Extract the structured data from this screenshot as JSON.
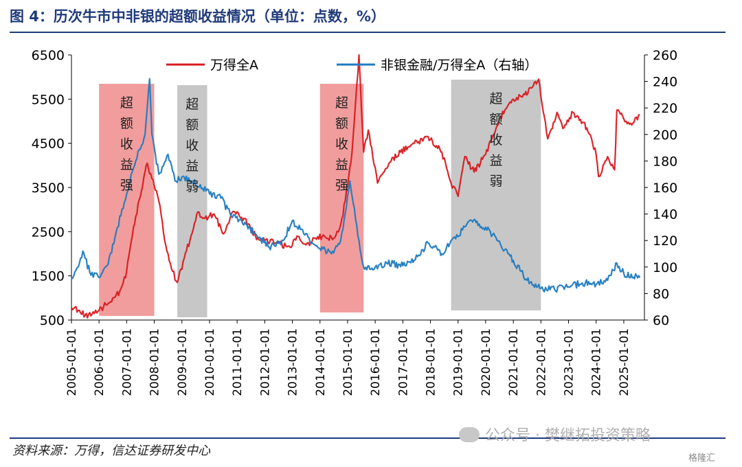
{
  "header": {
    "title": "图 4：历次牛市中非银的超额收益情况（单位：点数，%）"
  },
  "footer": {
    "source": "资料来源：万得，信达证券研发中心",
    "watermark": "公众号 · 樊继拓投资策略",
    "brand": "格隆汇"
  },
  "chart_data": {
    "type": "line",
    "x_tick_labels": [
      "2005-01-01",
      "2006-01-01",
      "2007-01-01",
      "2008-01-01",
      "2009-01-01",
      "2010-01-01",
      "2011-01-01",
      "2012-01-01",
      "2013-01-01",
      "2014-01-01",
      "2015-01-01",
      "2016-01-01",
      "2017-01-01",
      "2018-01-01",
      "2019-01-01",
      "2020-01-01",
      "2021-01-01",
      "2022-01-01",
      "2023-01-01",
      "2024-01-01",
      "2025-01-01"
    ],
    "y_left": {
      "ticks": [
        500,
        1500,
        2500,
        3500,
        4500,
        5500,
        6500
      ],
      "range": [
        500,
        6500
      ]
    },
    "y_right": {
      "ticks": [
        60,
        80,
        100,
        120,
        140,
        160,
        180,
        200,
        220,
        240,
        260
      ],
      "range": [
        60,
        260
      ]
    },
    "colors": {
      "wind_a": "#d9191f",
      "ratio": "#1f7bc0",
      "strong_band": "#ef8c8c",
      "weak_band": "#c4c4c4"
    },
    "series": [
      {
        "name": "万得全A",
        "axis": "left",
        "points": [
          [
            "2005-01-01",
            780
          ],
          [
            "2005-04-01",
            720
          ],
          [
            "2005-07-01",
            610
          ],
          [
            "2005-10-01",
            630
          ],
          [
            "2006-01-01",
            720
          ],
          [
            "2006-04-01",
            850
          ],
          [
            "2006-07-01",
            1000
          ],
          [
            "2006-10-01",
            1150
          ],
          [
            "2007-01-01",
            1600
          ],
          [
            "2007-04-01",
            2600
          ],
          [
            "2007-07-01",
            3300
          ],
          [
            "2007-10-01",
            4050
          ],
          [
            "2007-12-01",
            3700
          ],
          [
            "2008-03-01",
            3200
          ],
          [
            "2008-06-01",
            2200
          ],
          [
            "2008-09-01",
            1600
          ],
          [
            "2008-11-01",
            1350
          ],
          [
            "2009-02-01",
            1900
          ],
          [
            "2009-05-01",
            2400
          ],
          [
            "2009-08-01",
            2950
          ],
          [
            "2009-11-01",
            2800
          ],
          [
            "2010-03-01",
            2900
          ],
          [
            "2010-07-01",
            2450
          ],
          [
            "2010-11-01",
            2950
          ],
          [
            "2011-04-01",
            2800
          ],
          [
            "2011-09-01",
            2400
          ],
          [
            "2012-01-01",
            2300
          ],
          [
            "2012-06-01",
            2250
          ],
          [
            "2012-12-01",
            2150
          ],
          [
            "2013-03-01",
            2400
          ],
          [
            "2013-07-01",
            2200
          ],
          [
            "2013-11-01",
            2350
          ],
          [
            "2014-03-01",
            2400
          ],
          [
            "2014-07-01",
            2350
          ],
          [
            "2014-10-01",
            2650
          ],
          [
            "2014-12-01",
            3200
          ],
          [
            "2015-03-01",
            4300
          ],
          [
            "2015-06-01",
            6500
          ],
          [
            "2015-08-01",
            4300
          ],
          [
            "2015-10-01",
            4800
          ],
          [
            "2016-02-01",
            3600
          ],
          [
            "2016-07-01",
            4050
          ],
          [
            "2016-12-01",
            4300
          ],
          [
            "2017-06-01",
            4500
          ],
          [
            "2017-12-01",
            4650
          ],
          [
            "2018-06-01",
            4300
          ],
          [
            "2018-10-01",
            3600
          ],
          [
            "2019-01-01",
            3300
          ],
          [
            "2019-04-01",
            4200
          ],
          [
            "2019-08-01",
            3850
          ],
          [
            "2020-01-01",
            4250
          ],
          [
            "2020-07-01",
            5050
          ],
          [
            "2021-01-01",
            5500
          ],
          [
            "2021-06-01",
            5600
          ],
          [
            "2021-12-01",
            5950
          ],
          [
            "2022-04-01",
            4600
          ],
          [
            "2022-08-01",
            5200
          ],
          [
            "2022-11-01",
            4850
          ],
          [
            "2023-03-01",
            5200
          ],
          [
            "2023-09-01",
            4850
          ],
          [
            "2024-01-01",
            4250
          ],
          [
            "2024-02-01",
            3750
          ],
          [
            "2024-06-01",
            4200
          ],
          [
            "2024-09-01",
            3900
          ],
          [
            "2024-10-01",
            5250
          ],
          [
            "2025-01-01",
            5050
          ],
          [
            "2025-04-01",
            4950
          ],
          [
            "2025-08-01",
            5150
          ]
        ]
      },
      {
        "name": "非银金融/万得全A（右轴）",
        "axis": "right",
        "points": [
          [
            "2005-01-01",
            92
          ],
          [
            "2005-04-01",
            100
          ],
          [
            "2005-06-01",
            112
          ],
          [
            "2005-09-01",
            96
          ],
          [
            "2006-01-01",
            92
          ],
          [
            "2006-05-01",
            102
          ],
          [
            "2006-09-01",
            130
          ],
          [
            "2007-01-01",
            155
          ],
          [
            "2007-05-01",
            180
          ],
          [
            "2007-09-01",
            200
          ],
          [
            "2007-11-01",
            242
          ],
          [
            "2007-12-01",
            200
          ],
          [
            "2008-03-01",
            170
          ],
          [
            "2008-07-01",
            185
          ],
          [
            "2008-10-01",
            165
          ],
          [
            "2009-01-01",
            168
          ],
          [
            "2009-05-01",
            165
          ],
          [
            "2009-09-01",
            162
          ],
          [
            "2010-01-01",
            155
          ],
          [
            "2010-06-01",
            152
          ],
          [
            "2010-10-01",
            140
          ],
          [
            "2011-03-01",
            135
          ],
          [
            "2011-09-01",
            125
          ],
          [
            "2012-03-01",
            115
          ],
          [
            "2012-09-01",
            120
          ],
          [
            "2013-01-01",
            135
          ],
          [
            "2013-06-01",
            125
          ],
          [
            "2013-12-01",
            115
          ],
          [
            "2014-06-01",
            110
          ],
          [
            "2014-10-01",
            120
          ],
          [
            "2015-02-01",
            165
          ],
          [
            "2015-06-01",
            120
          ],
          [
            "2015-08-01",
            100
          ],
          [
            "2016-01-01",
            100
          ],
          [
            "2016-06-01",
            103
          ],
          [
            "2017-01-01",
            101
          ],
          [
            "2017-06-01",
            105
          ],
          [
            "2017-12-01",
            118
          ],
          [
            "2018-06-01",
            110
          ],
          [
            "2018-10-01",
            120
          ],
          [
            "2019-03-01",
            128
          ],
          [
            "2019-06-01",
            135
          ],
          [
            "2020-01-01",
            130
          ],
          [
            "2020-06-01",
            120
          ],
          [
            "2021-01-01",
            105
          ],
          [
            "2021-07-01",
            90
          ],
          [
            "2022-01-01",
            84
          ],
          [
            "2022-07-01",
            83
          ],
          [
            "2023-01-01",
            85
          ],
          [
            "2023-07-01",
            88
          ],
          [
            "2024-01-01",
            87
          ],
          [
            "2024-06-01",
            90
          ],
          [
            "2024-10-01",
            103
          ],
          [
            "2025-01-01",
            95
          ],
          [
            "2025-08-01",
            92
          ]
        ]
      }
    ],
    "bands": [
      {
        "kind": "strong",
        "start": "2006-01-01",
        "end": "2008-01-01",
        "label": "超额收益强"
      },
      {
        "kind": "weak",
        "start": "2008-11-01",
        "end": "2009-12-01",
        "label": "超额收益弱"
      },
      {
        "kind": "strong",
        "start": "2014-01-01",
        "end": "2015-08-01",
        "label": "超额收益强"
      },
      {
        "kind": "weak",
        "start": "2018-10-01",
        "end": "2022-01-01",
        "label": "超额收益弱"
      }
    ],
    "legend_position": "top-center"
  }
}
